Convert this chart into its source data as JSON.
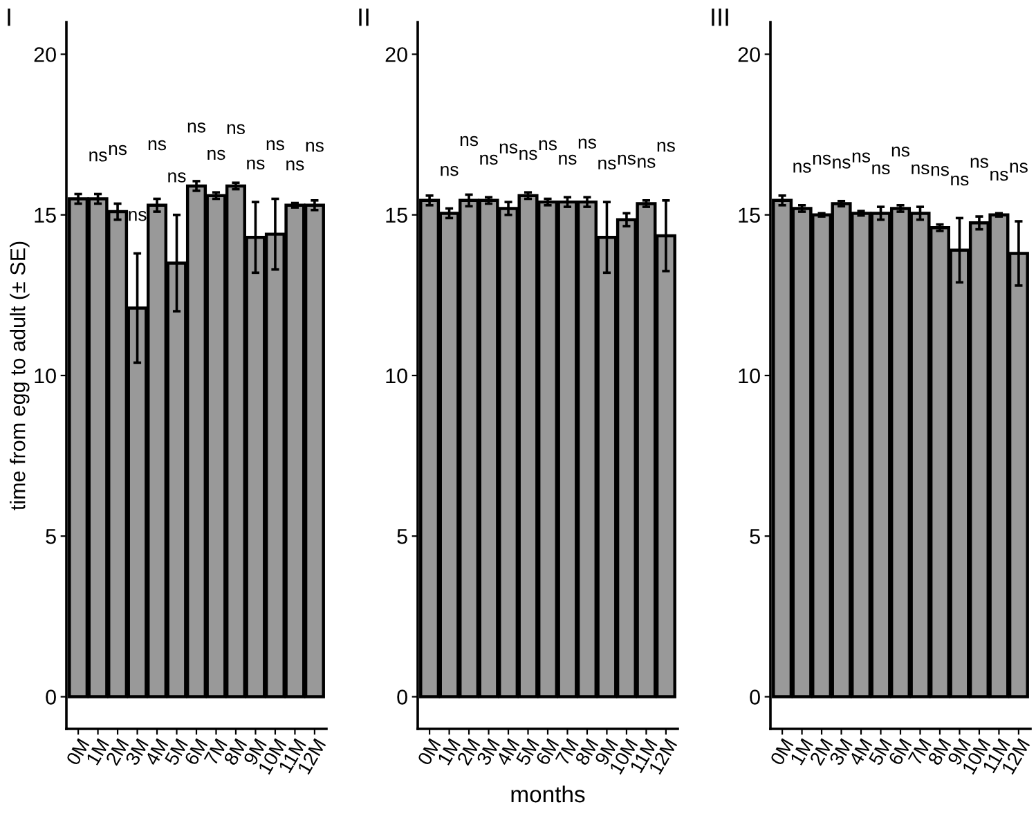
{
  "chart_data": [
    {
      "type": "bar",
      "title": "I",
      "ylabel": "time from egg to adult (± SE)",
      "categories": [
        "0M",
        "1M",
        "2M",
        "3M",
        "4M",
        "5M",
        "6M",
        "7M",
        "8M",
        "9M",
        "10M",
        "11M",
        "12M"
      ],
      "series": [
        {
          "color": "#999999",
          "values": [
            15.5,
            15.5,
            15.1,
            12.1,
            15.3,
            13.5,
            15.9,
            15.6,
            15.9,
            14.3,
            14.4,
            15.3,
            15.3
          ],
          "errors": [
            0.15,
            0.15,
            0.25,
            1.7,
            0.2,
            1.5,
            0.15,
            0.1,
            0.1,
            1.1,
            1.1,
            0.07,
            0.15
          ]
        }
      ],
      "ylim": [
        -1,
        21
      ],
      "yticks": [
        0,
        5,
        10,
        15,
        20
      ],
      "grid": false,
      "legend": false,
      "annotations": [
        "ns",
        "ns",
        "ns",
        "ns",
        "ns",
        "ns",
        "ns",
        "ns",
        "ns",
        "ns",
        "ns",
        "ns"
      ]
    },
    {
      "type": "bar",
      "title": "II",
      "xlabel": "months",
      "categories": [
        "0M",
        "1M",
        "2M",
        "3M",
        "4M",
        "5M",
        "6M",
        "7M",
        "8M",
        "9M",
        "10M",
        "11M",
        "12M"
      ],
      "series": [
        {
          "color": "#999999",
          "values": [
            15.45,
            15.05,
            15.45,
            15.45,
            15.2,
            15.6,
            15.4,
            15.4,
            15.4,
            14.3,
            14.85,
            15.35,
            14.35
          ],
          "errors": [
            0.15,
            0.15,
            0.18,
            0.1,
            0.2,
            0.1,
            0.1,
            0.15,
            0.15,
            1.1,
            0.2,
            0.1,
            1.1
          ]
        }
      ],
      "ylim": [
        -1,
        21
      ],
      "yticks": [
        0,
        5,
        10,
        15,
        20
      ],
      "grid": false,
      "legend": false,
      "annotations": [
        "ns",
        "ns",
        "ns",
        "ns",
        "ns",
        "ns",
        "ns",
        "ns",
        "ns",
        "ns",
        "ns",
        "ns"
      ]
    },
    {
      "type": "bar",
      "title": "III",
      "categories": [
        "0M",
        "1M",
        "2M",
        "3M",
        "4M",
        "5M",
        "6M",
        "7M",
        "8M",
        "9M",
        "10M",
        "11M",
        "12M"
      ],
      "series": [
        {
          "color": "#999999",
          "values": [
            15.45,
            15.2,
            15.0,
            15.35,
            15.05,
            15.05,
            15.2,
            15.05,
            14.6,
            13.9,
            14.75,
            15.0,
            13.8
          ],
          "errors": [
            0.15,
            0.1,
            0.05,
            0.08,
            0.07,
            0.2,
            0.1,
            0.2,
            0.1,
            1.0,
            0.2,
            0.05,
            1.0
          ]
        }
      ],
      "ylim": [
        -1,
        21
      ],
      "yticks": [
        0,
        5,
        10,
        15,
        20
      ],
      "grid": false,
      "legend": false,
      "annotations": [
        "ns",
        "ns",
        "ns",
        "ns",
        "ns",
        "ns",
        "ns",
        "ns",
        "ns",
        "ns",
        "ns",
        "ns"
      ]
    }
  ]
}
